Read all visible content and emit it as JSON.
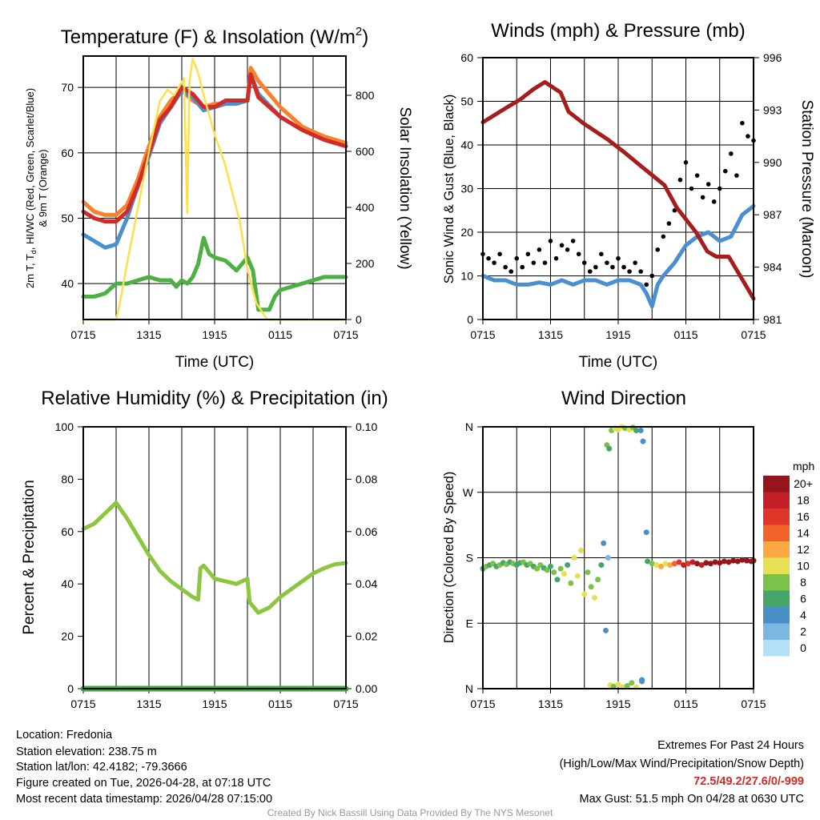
{
  "chart_data": [
    {
      "type": "line",
      "title": "Temperature (F) & Insolation (W/m",
      "title_sup": "2",
      "title_end": ")",
      "xlabel": "Time (UTC)",
      "ylabel_line1_a": "2m T, T",
      "ylabel_line1_sub": "d",
      "ylabel_line1_b": ", HI/WC (Red, Green, Scarlet/Blue)",
      "ylabel_line2": "& 9m T (Orange)",
      "ylabel_right": "Solar Insolation (Yellow)",
      "xticks": [
        0,
        6,
        12,
        18,
        24
      ],
      "xtick_labels": [
        "0715",
        "1315",
        "1915",
        "0115",
        "0715"
      ],
      "ylim": [
        34.5,
        74.8
      ],
      "yticks": [
        40,
        50,
        60,
        70
      ],
      "ylim_right": [
        0,
        940
      ],
      "yticks_right": [
        0,
        200,
        400,
        600,
        800
      ],
      "series": [
        {
          "name": "9m T",
          "color": "#f7812d",
          "axis": "left",
          "x": [
            0,
            1,
            2,
            3,
            4,
            5,
            6,
            7,
            8,
            9,
            10,
            11,
            12,
            13,
            14,
            15,
            15.3,
            16,
            18,
            20,
            22,
            24
          ],
          "y": [
            52.5,
            51,
            50.5,
            50.5,
            52,
            56,
            61,
            65.5,
            68,
            69.5,
            68,
            67,
            67.5,
            67.5,
            68,
            68,
            73,
            71,
            67,
            64,
            62.5,
            61.5
          ]
        },
        {
          "name": "HI/WC",
          "color": "#4a90d0",
          "axis": "left",
          "x": [
            0,
            1,
            2,
            3,
            4,
            5,
            6,
            7,
            8,
            9,
            10,
            11,
            12,
            13,
            14,
            15,
            15.3,
            16,
            18,
            20,
            22,
            24
          ],
          "y": [
            47.5,
            46.5,
            45.5,
            46,
            50,
            55,
            59.5,
            64.5,
            67,
            69.5,
            68.5,
            66.5,
            67,
            67.5,
            67.5,
            68,
            72,
            69,
            65.5,
            63.5,
            62,
            61
          ]
        },
        {
          "name": "2m T",
          "color": "#d42a25",
          "axis": "left",
          "x": [
            0,
            1,
            2,
            3,
            4,
            5,
            6,
            7,
            8,
            9,
            10,
            11,
            12,
            13,
            14,
            15,
            15.3,
            16,
            18,
            20,
            22,
            24
          ],
          "y": [
            51,
            50,
            49.5,
            49.5,
            51,
            55,
            60,
            65,
            67,
            70,
            69,
            67,
            67,
            68,
            68,
            68,
            72,
            68.5,
            65.5,
            63.5,
            62,
            61
          ]
        },
        {
          "name": "2m Td",
          "color": "#4cb043",
          "axis": "left",
          "x": [
            0,
            1,
            2,
            3,
            4,
            5,
            6,
            7,
            8,
            8.5,
            9,
            9.5,
            10,
            10.5,
            11,
            11.5,
            12,
            13,
            14,
            15,
            15.5,
            16,
            17,
            17.5,
            18,
            20,
            22,
            24
          ],
          "y": [
            38,
            38,
            38.5,
            40,
            40,
            40.5,
            41,
            40.5,
            40.5,
            39.5,
            40.5,
            40,
            41,
            43,
            47,
            44.5,
            44,
            43.5,
            42,
            44,
            42,
            36,
            36,
            38,
            39,
            40,
            41,
            41
          ]
        },
        {
          "name": "Solar Insolation",
          "color": "#fde04a",
          "axis": "right",
          "x": [
            0,
            3,
            3.3,
            4,
            5,
            6,
            7,
            7.7,
            8.3,
            9.2,
            9.5,
            9.6,
            9.7,
            10,
            10.5,
            11,
            12,
            12.9,
            14.3,
            15,
            15.8,
            16.8,
            24
          ],
          "y": [
            0,
            0,
            50,
            200,
            400,
            600,
            780,
            820,
            800,
            860,
            380,
            600,
            850,
            930,
            880,
            800,
            660,
            560,
            350,
            180,
            60,
            0,
            0
          ]
        }
      ]
    },
    {
      "type": "line",
      "title": "Winds (mph) & Pressure (mb)",
      "xlabel": "Time (UTC)",
      "ylabel": "Sonic Wind & Gust (Blue, Black)",
      "ylabel_right": "Station Pressure (Maroon)",
      "xticks": [
        0,
        6,
        12,
        18,
        24
      ],
      "xtick_labels": [
        "0715",
        "1315",
        "1915",
        "0115",
        "0715"
      ],
      "ylim": [
        0,
        60
      ],
      "yticks": [
        0,
        10,
        20,
        30,
        40,
        50,
        60
      ],
      "ylim_right": [
        981,
        996
      ],
      "yticks_right": [
        981,
        984,
        987,
        990,
        993,
        996
      ],
      "series": [
        {
          "name": "Sonic Wind",
          "color": "#4a90d0",
          "axis": "left",
          "x": [
            0,
            1,
            2,
            3,
            4,
            5,
            6,
            7,
            8,
            9,
            10,
            11,
            12,
            13,
            14,
            14.5,
            15,
            15.5,
            16,
            17,
            18,
            19,
            20,
            21,
            22,
            23,
            24
          ],
          "y": [
            10,
            9,
            9,
            8,
            8,
            8.5,
            8,
            9,
            8,
            9,
            9,
            8,
            9,
            9,
            8,
            6,
            3,
            8,
            10,
            13,
            17,
            19,
            20,
            18,
            19,
            24,
            26
          ]
        },
        {
          "name": "Gust",
          "color": "#000000",
          "axis": "left",
          "type": "scatter",
          "x": [
            0,
            0.5,
            1,
            1.5,
            2,
            2.5,
            3,
            3.5,
            4,
            4.5,
            5,
            5.5,
            6,
            6.5,
            7,
            7.5,
            8,
            8.5,
            9,
            9.5,
            10,
            10.5,
            11,
            11.5,
            12,
            12.5,
            13,
            13.5,
            14,
            14.5,
            15,
            15.5,
            16,
            16.5,
            17,
            17.5,
            18,
            18.5,
            19,
            19.5,
            20,
            20.5,
            21,
            21.5,
            22,
            22.5,
            23,
            23.5,
            24
          ],
          "y": [
            15,
            14,
            13,
            15,
            12,
            11,
            14,
            12,
            15,
            13,
            16,
            13,
            18,
            14,
            17,
            16,
            18,
            15,
            13,
            11,
            12,
            15,
            13,
            12,
            14,
            12,
            11,
            13,
            11,
            8,
            10,
            16,
            19,
            22,
            25,
            32,
            36,
            30,
            33,
            28,
            31,
            27,
            30,
            34,
            38,
            33,
            45,
            42,
            41
          ]
        },
        {
          "name": "Station Pressure",
          "color": "#a61d1d",
          "axis": "right",
          "x": [
            0,
            1,
            2,
            3.3,
            4.5,
            5.5,
            6.9,
            7.6,
            9,
            11.1,
            12.5,
            14,
            16.1,
            17.2,
            18.9,
            19.9,
            20.7,
            21.8,
            23,
            24
          ],
          "y": [
            992.3,
            992.7,
            993.1,
            993.6,
            994.2,
            994.6,
            994,
            992.9,
            992.2,
            991.3,
            990.6,
            989.8,
            988.7,
            987.4,
            986,
            984.9,
            984.6,
            984.6,
            983.3,
            982.2
          ]
        }
      ]
    },
    {
      "type": "line",
      "title": "Relative Humidity (%) & Precipitation (in)",
      "ylabel": "Percent & Precipitation",
      "xticks": [
        0,
        6,
        12,
        18,
        24
      ],
      "xtick_labels": [
        "0715",
        "1315",
        "1915",
        "0115",
        "0715"
      ],
      "ylim": [
        0,
        100
      ],
      "yticks": [
        0,
        20,
        40,
        60,
        80,
        100
      ],
      "ylim_right": [
        0,
        0.1
      ],
      "yticks_right": [
        "0.00",
        "0.02",
        "0.04",
        "0.06",
        "0.08",
        "0.10"
      ],
      "series": [
        {
          "name": "Relative Humidity",
          "color": "#8cc63f",
          "axis": "left",
          "x": [
            0,
            1,
            2,
            3,
            4,
            5,
            6,
            7,
            8,
            9,
            10,
            10.5,
            10.7,
            11,
            12,
            13,
            14,
            15,
            15.2,
            16,
            17,
            18,
            19,
            20,
            21,
            22,
            23,
            24
          ],
          "y": [
            61,
            63,
            67,
            71,
            65,
            58,
            51,
            45,
            41,
            38,
            35,
            34,
            46,
            47,
            42,
            41,
            40,
            42,
            33,
            29,
            31,
            35,
            38,
            41,
            44,
            46,
            47.5,
            48
          ]
        },
        {
          "name": "Precipitation",
          "color": "#3daa3d",
          "axis": "right",
          "x": [
            0,
            24
          ],
          "y": [
            0,
            0
          ]
        }
      ]
    },
    {
      "type": "scatter",
      "title": "Wind Direction",
      "ylabel": "Direction (Colored By Speed)",
      "xticks": [
        0,
        6,
        12,
        18,
        24
      ],
      "xtick_labels": [
        "0715",
        "1315",
        "1915",
        "0115",
        "0715"
      ],
      "ylim": [
        0,
        360
      ],
      "yticks": [
        0,
        90,
        180,
        270,
        360
      ],
      "ytick_labels": [
        "N",
        "E",
        "S",
        "W",
        "N"
      ],
      "legend_title": "mph",
      "legend_labels": [
        "0",
        "2",
        "4",
        "6",
        "8",
        "10",
        "12",
        "14",
        "16",
        "18",
        "20+"
      ],
      "legend_colors": [
        "#b3e0f7",
        "#7ab8e3",
        "#4a8fc7",
        "#46a66a",
        "#7ac24a",
        "#e6e055",
        "#f9a843",
        "#f2632a",
        "#e0352a",
        "#c21f26",
        "#94161c"
      ],
      "points": [
        [
          0,
          165,
          7
        ],
        [
          0.3,
          168,
          8
        ],
        [
          0.6,
          170,
          7
        ],
        [
          0.9,
          172,
          8
        ],
        [
          1.2,
          168,
          7
        ],
        [
          1.5,
          170,
          8
        ],
        [
          1.8,
          173,
          7
        ],
        [
          2.1,
          171,
          8
        ],
        [
          2.4,
          174,
          7
        ],
        [
          2.7,
          172,
          8
        ],
        [
          3,
          170,
          7
        ],
        [
          3.3,
          173,
          6
        ],
        [
          3.6,
          174,
          8
        ],
        [
          3.9,
          170,
          7
        ],
        [
          4.2,
          172,
          8
        ],
        [
          4.5,
          168,
          7
        ],
        [
          4.8,
          165,
          8
        ],
        [
          5.1,
          170,
          9
        ],
        [
          5.4,
          166,
          7
        ],
        [
          5.7,
          163,
          8
        ],
        [
          6,
          168,
          6
        ],
        [
          6.3,
          160,
          9
        ],
        [
          6.6,
          150,
          7
        ],
        [
          6.9,
          165,
          8
        ],
        [
          7.2,
          158,
          10
        ],
        [
          7.5,
          170,
          6
        ],
        [
          7.8,
          145,
          9
        ],
        [
          8.1,
          180,
          10
        ],
        [
          8.4,
          155,
          11
        ],
        [
          8.7,
          190,
          11
        ],
        [
          9,
          130,
          10
        ],
        [
          9.3,
          160,
          8
        ],
        [
          9.6,
          140,
          9
        ],
        [
          9.9,
          125,
          10
        ],
        [
          10.2,
          150,
          8
        ],
        [
          10.5,
          170,
          6
        ],
        [
          10.7,
          200,
          4
        ],
        [
          10.9,
          80,
          4
        ],
        [
          11.1,
          180,
          3
        ],
        [
          11,
          335,
          8
        ],
        [
          11.2,
          330,
          6
        ],
        [
          11.4,
          355,
          8
        ],
        [
          11.7,
          358,
          10
        ],
        [
          12,
          356,
          11
        ],
        [
          12.3,
          360,
          10
        ],
        [
          12.6,
          358,
          8
        ],
        [
          13,
          356,
          11
        ],
        [
          13.3,
          359,
          9
        ],
        [
          13.6,
          355,
          7
        ],
        [
          14,
          355,
          4
        ],
        [
          14.2,
          340,
          4
        ],
        [
          14.1,
          10,
          4
        ],
        [
          11.3,
          5,
          10
        ],
        [
          11.6,
          3,
          9
        ],
        [
          12,
          6,
          10
        ],
        [
          12.4,
          2,
          11
        ],
        [
          12.8,
          4,
          8
        ],
        [
          13.2,
          8,
          9
        ],
        [
          13.6,
          2,
          10
        ],
        [
          14.1,
          12,
          4
        ],
        [
          14.5,
          215,
          4
        ],
        [
          14.6,
          175,
          6
        ],
        [
          15,
          172,
          8
        ],
        [
          15.4,
          170,
          10
        ],
        [
          15.8,
          168,
          12
        ],
        [
          16.2,
          172,
          11
        ],
        [
          16.6,
          170,
          13
        ],
        [
          17,
          172,
          15
        ],
        [
          17.4,
          174,
          16
        ],
        [
          17.8,
          170,
          18
        ],
        [
          18.2,
          172,
          17
        ],
        [
          18.6,
          174,
          19
        ],
        [
          19,
          172,
          20
        ],
        [
          19.4,
          170,
          18
        ],
        [
          19.8,
          173,
          20
        ],
        [
          20.2,
          172,
          20
        ],
        [
          20.6,
          174,
          21
        ],
        [
          21,
          173,
          20
        ],
        [
          21.4,
          175,
          21
        ],
        [
          21.8,
          174,
          20
        ],
        [
          22.2,
          176,
          22
        ],
        [
          22.6,
          175,
          21
        ],
        [
          23,
          177,
          22
        ],
        [
          23.4,
          176,
          22
        ],
        [
          23.8,
          175,
          22
        ],
        [
          24,
          176,
          21
        ]
      ]
    }
  ],
  "info": {
    "location": "Location: Fredonia",
    "elevation": "Station elevation: 238.75 m",
    "latlon": "Station lat/lon: 42.4182; -79.3666",
    "created": "Figure created on Tue, 2026-04-28, at 07:18 UTC",
    "recent": "Most recent data timestamp: 2026/04/28 07:15:00",
    "extremes_title": "Extremes For Past 24 Hours",
    "extremes_sub": "(High/Low/Max Wind/Precipitation/Snow Depth)",
    "extremes_values": "72.5/49.2/27.6/0/-999",
    "max_gust": "Max Gust: 51.5 mph On 04/28 at 0630 UTC",
    "credit": "Created By Nick Bassill Using Data Provided By The NYS Mesonet"
  }
}
